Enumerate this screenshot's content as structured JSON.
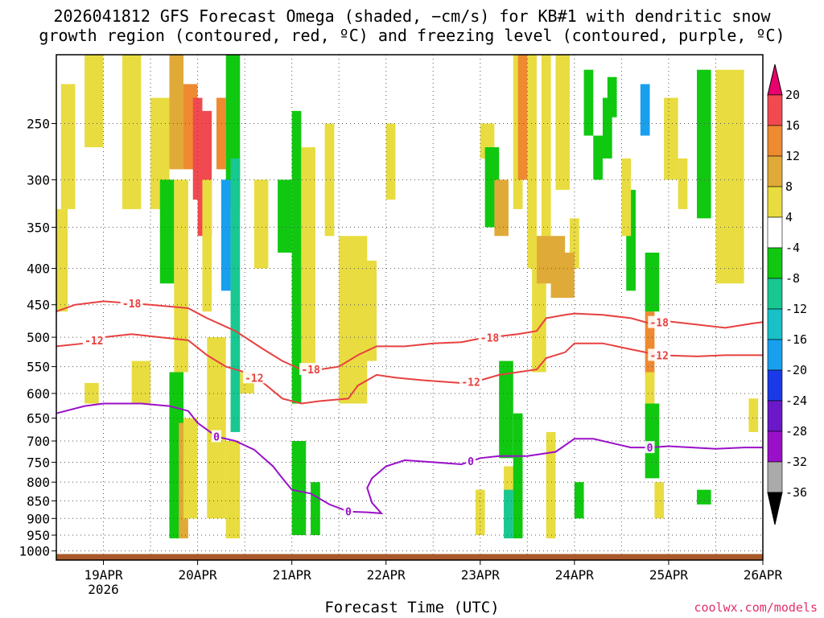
{
  "title_line1": "2026041812 GFS Forecast Omega (shaded, −cm/s) for KB#1 with dendritic snow",
  "title_line2": "growth region (contoured, red, ºC) and freezing level (contoured, purple, ºC)",
  "credit": "coolwx.com/models",
  "chart_data": {
    "type": "heatmap",
    "xlabel": "Forecast Time (UTC)",
    "x_ticks": [
      {
        "label": "19APR",
        "sub": "2026",
        "day": 19
      },
      {
        "label": "20APR",
        "day": 20
      },
      {
        "label": "21APR",
        "day": 21
      },
      {
        "label": "22APR",
        "day": 22
      },
      {
        "label": "23APR",
        "day": 23
      },
      {
        "label": "24APR",
        "day": 24
      },
      {
        "label": "25APR",
        "day": 25
      },
      {
        "label": "26APR",
        "day": 26
      }
    ],
    "xlim_days": [
      18.5,
      26.0
    ],
    "y_ticks": [
      "250",
      "300",
      "350",
      "400",
      "450",
      "500",
      "550",
      "600",
      "650",
      "700",
      "750",
      "800",
      "850",
      "900",
      "950",
      "1000"
    ],
    "y_values": [
      250,
      300,
      350,
      400,
      450,
      500,
      550,
      600,
      650,
      700,
      750,
      800,
      850,
      900,
      950,
      1000
    ],
    "ylim_hpa": [
      200,
      1030
    ],
    "y_scale": "log",
    "grid": true,
    "colorbar": {
      "labels": [
        "20",
        "16",
        "12",
        "8",
        "4",
        "-4",
        "-8",
        "-12",
        "-16",
        "-20",
        "-24",
        "-28",
        "-32",
        "-36"
      ],
      "colors": [
        "#e8006e",
        "#f04a50",
        "#ee8a30",
        "#e0aa38",
        "#e8dc40",
        "#ffffff",
        "#10c810",
        "#18c890",
        "#18c0c8",
        "#18a0ef",
        "#1a3ae8",
        "#6a18c8",
        "#9a10c8",
        "#aaaaaa",
        "#000000"
      ]
    },
    "contours": {
      "dgz_color": "#e84040",
      "freezing_color": "#9a10c8",
      "minus18": {
        "label": "-18",
        "points": [
          [
            18.5,
            460
          ],
          [
            18.7,
            450
          ],
          [
            19.0,
            445
          ],
          [
            19.5,
            450
          ],
          [
            19.9,
            455
          ],
          [
            20.1,
            470
          ],
          [
            20.4,
            490
          ],
          [
            20.7,
            520
          ],
          [
            20.9,
            540
          ],
          [
            21.1,
            555
          ],
          [
            21.3,
            555
          ],
          [
            21.5,
            550
          ],
          [
            21.7,
            530
          ],
          [
            21.9,
            515
          ],
          [
            22.2,
            515
          ],
          [
            22.5,
            510
          ],
          [
            22.8,
            508
          ],
          [
            23.0,
            502
          ],
          [
            23.4,
            495
          ],
          [
            23.6,
            490
          ],
          [
            23.7,
            470
          ],
          [
            23.9,
            465
          ],
          [
            24.0,
            463
          ],
          [
            24.3,
            465
          ],
          [
            24.6,
            470
          ],
          [
            24.8,
            478
          ],
          [
            25.0,
            475
          ],
          [
            25.3,
            480
          ],
          [
            25.6,
            485
          ],
          [
            25.9,
            478
          ],
          [
            26.0,
            476
          ]
        ],
        "label_days": [
          19.3,
          21.2,
          23.1,
          24.9
        ]
      },
      "minus12": {
        "label": "-12",
        "points": [
          [
            18.5,
            515
          ],
          [
            18.8,
            510
          ],
          [
            19.0,
            500
          ],
          [
            19.3,
            495
          ],
          [
            19.6,
            500
          ],
          [
            19.9,
            505
          ],
          [
            20.1,
            530
          ],
          [
            20.3,
            550
          ],
          [
            20.5,
            560
          ],
          [
            20.7,
            580
          ],
          [
            20.9,
            610
          ],
          [
            21.1,
            620
          ],
          [
            21.3,
            615
          ],
          [
            21.6,
            610
          ],
          [
            21.7,
            585
          ],
          [
            21.9,
            565
          ],
          [
            22.1,
            570
          ],
          [
            22.4,
            575
          ],
          [
            22.8,
            580
          ],
          [
            23.0,
            575
          ],
          [
            23.2,
            565
          ],
          [
            23.4,
            560
          ],
          [
            23.6,
            555
          ],
          [
            23.7,
            535
          ],
          [
            23.9,
            525
          ],
          [
            24.0,
            510
          ],
          [
            24.3,
            510
          ],
          [
            24.6,
            520
          ],
          [
            24.9,
            530
          ],
          [
            25.3,
            532
          ],
          [
            25.6,
            530
          ],
          [
            26.0,
            530
          ]
        ],
        "label_days": [
          18.9,
          20.6,
          22.9,
          24.9
        ]
      },
      "zero": {
        "label": "0",
        "points": [
          [
            18.5,
            640
          ],
          [
            18.8,
            625
          ],
          [
            19.0,
            620
          ],
          [
            19.4,
            620
          ],
          [
            19.7,
            625
          ],
          [
            19.9,
            635
          ],
          [
            20.0,
            660
          ],
          [
            20.2,
            690
          ],
          [
            20.4,
            700
          ],
          [
            20.6,
            720
          ],
          [
            20.8,
            760
          ],
          [
            20.9,
            790
          ],
          [
            21.0,
            820
          ],
          [
            21.2,
            830
          ],
          [
            21.4,
            860
          ],
          [
            21.6,
            880
          ],
          [
            21.8,
            882
          ],
          [
            21.95,
            885
          ],
          [
            21.85,
            855
          ],
          [
            21.8,
            815
          ],
          [
            21.85,
            790
          ],
          [
            22.0,
            760
          ],
          [
            22.2,
            745
          ],
          [
            22.5,
            750
          ],
          [
            22.8,
            755
          ],
          [
            23.0,
            740
          ],
          [
            23.2,
            735
          ],
          [
            23.5,
            735
          ],
          [
            23.8,
            725
          ],
          [
            24.0,
            695
          ],
          [
            24.2,
            695
          ],
          [
            24.4,
            705
          ],
          [
            24.6,
            715
          ],
          [
            24.8,
            715
          ],
          [
            25.0,
            712
          ],
          [
            25.5,
            718
          ],
          [
            25.8,
            715
          ],
          [
            26.0,
            715
          ]
        ],
        "label_days": [
          20.2,
          21.6,
          22.9,
          24.8
        ]
      }
    },
    "ground_hpa": 1010
  }
}
